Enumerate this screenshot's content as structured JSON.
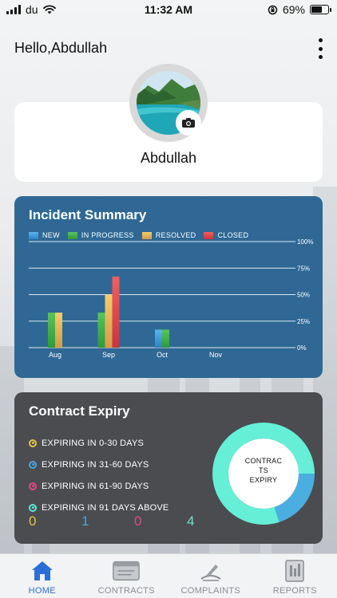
{
  "status_bar": {
    "carrier": "du",
    "time": "11:32 AM",
    "battery": "69%",
    "battery_level": 0.69
  },
  "header": {
    "greeting": "Hello,Abdullah",
    "menu_icon": "more-vertical-icon"
  },
  "profile": {
    "name": "Abdullah",
    "camera_icon": "camera-icon"
  },
  "incident_summary": {
    "title": "Incident Summary",
    "legend": [
      {
        "label": "NEW",
        "color": "#3a9ad9"
      },
      {
        "label": "IN PROGRESS",
        "color": "#3fae49"
      },
      {
        "label": "RESOLVED",
        "color": "#e6b85c"
      },
      {
        "label": "CLOSED",
        "color": "#e0474c"
      }
    ]
  },
  "chart_data": {
    "type": "bar",
    "title": "Incident Summary",
    "categories": [
      "Aug",
      "Sep",
      "Oct",
      "Nov"
    ],
    "y_ticks": [
      "0%",
      "25%",
      "50%",
      "75%",
      "100%"
    ],
    "ylim": [
      0,
      100
    ],
    "grid": true,
    "legend_placement": "top",
    "series": [
      {
        "name": "NEW",
        "color": "#3a9ad9",
        "values": [
          0,
          0,
          17,
          0
        ]
      },
      {
        "name": "IN PROGRESS",
        "color": "#3fae49",
        "values": [
          33,
          33,
          17,
          0
        ]
      },
      {
        "name": "RESOLVED",
        "color": "#e6b85c",
        "values": [
          33,
          50,
          0,
          0
        ]
      },
      {
        "name": "CLOSED",
        "color": "#e0474c",
        "values": [
          0,
          67,
          0,
          0
        ]
      }
    ]
  },
  "contract_expiry": {
    "title": "Contract Expiry",
    "donut_label": [
      "CONTRAC",
      "TS",
      "EXPIRY"
    ],
    "items": [
      {
        "label": "EXPIRING IN 0-30 DAYS",
        "color": "#e2c24a",
        "count": "0"
      },
      {
        "label": "EXPIRING IN 31-60 DAYS",
        "color": "#4da3e0",
        "count": "1"
      },
      {
        "label": "EXPIRING IN 61-90 DAYS",
        "color": "#e04a88",
        "count": "0"
      },
      {
        "label": "EXPIRING IN 91 DAYS ABOVE",
        "color": "#5ee8cf",
        "count": "4"
      }
    ],
    "donut": [
      {
        "value": 1,
        "color": "#4aaee0"
      },
      {
        "value": 4,
        "color": "#64efd6"
      }
    ]
  },
  "tabs": [
    {
      "label": "HOME",
      "icon": "home-icon",
      "active": true
    },
    {
      "label": "CONTRACTS",
      "icon": "contracts-icon",
      "active": false
    },
    {
      "label": "COMPLAINTS",
      "icon": "complaints-icon",
      "active": false
    },
    {
      "label": "REPORTS",
      "icon": "reports-icon",
      "active": false
    }
  ]
}
